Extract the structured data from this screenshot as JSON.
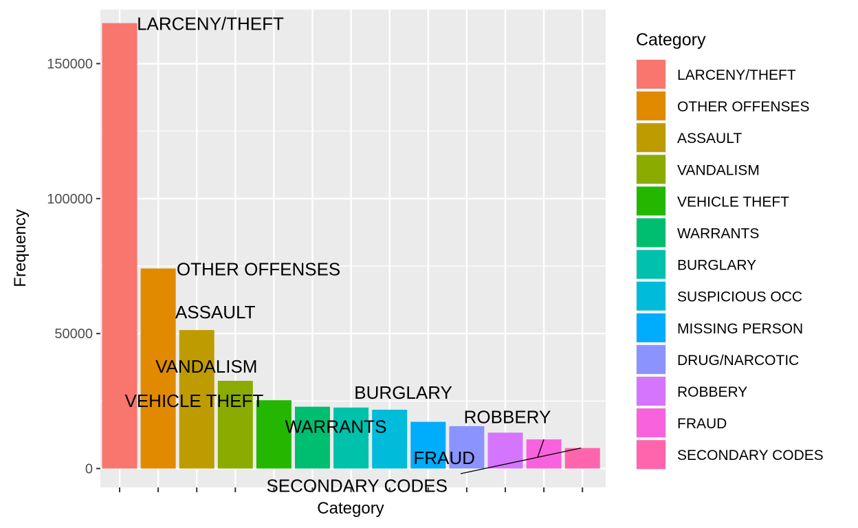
{
  "chart_data": {
    "type": "bar",
    "title": "",
    "xlabel": "Category",
    "ylabel": "Frequency",
    "ylim": [
      -7000,
      170000
    ],
    "yticks": [
      0,
      50000,
      100000,
      150000
    ],
    "ytick_labels": [
      "0",
      "50000",
      "100000",
      "150000"
    ],
    "grid": true,
    "legend_position": "right",
    "legend_title": "Category",
    "categories": [
      "LARCENY/THEFT",
      "OTHER OFFENSES",
      "ASSAULT",
      "VANDALISM",
      "VEHICLE THEFT",
      "WARRANTS",
      "BURGLARY",
      "SUSPICIOUS OCC",
      "MISSING PERSON",
      "DRUG/NARCOTIC",
      "ROBBERY",
      "FRAUD",
      "SECONDARY CODES"
    ],
    "values": [
      165000,
      74100,
      51300,
      32500,
      25300,
      22900,
      22600,
      21800,
      17300,
      15700,
      13300,
      10800,
      7600
    ],
    "colors": [
      "#F8766D",
      "#E18A00",
      "#BE9C00",
      "#8CAB00",
      "#24B700",
      "#00BE70",
      "#00C1AB",
      "#00BBDA",
      "#00ACFC",
      "#8B93FF",
      "#D575FE",
      "#F962DD",
      "#FF65AC"
    ],
    "annotations": [
      {
        "text": "LARCENY/THEFT",
        "bar": 0
      },
      {
        "text": "OTHER OFFENSES",
        "bar": 1
      },
      {
        "text": "ASSAULT",
        "bar": 2
      },
      {
        "text": "VANDALISM",
        "bar": 3
      },
      {
        "text": "VEHICLE THEFT",
        "bar": 4
      },
      {
        "text": "WARRANTS",
        "bar": 5
      },
      {
        "text": "BURGLARY",
        "bar": 6
      },
      {
        "text": "ROBBERY",
        "bar": 10
      },
      {
        "text": "FRAUD",
        "bar": 11
      },
      {
        "text": "SECONDARY CODES",
        "bar": 12
      }
    ]
  }
}
